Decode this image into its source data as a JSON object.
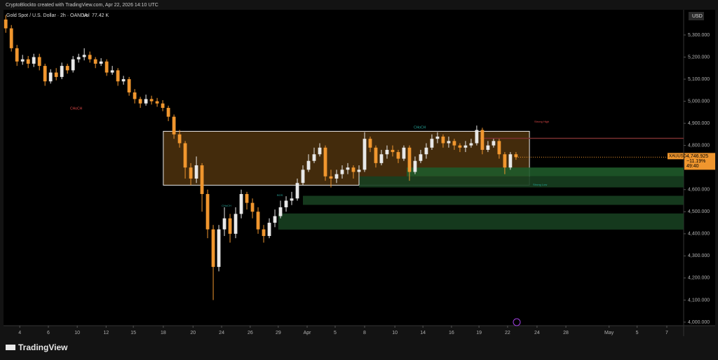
{
  "header": "CryptoBlockto created with TradingView.com, Apr 22, 2026 14:10 UTC",
  "brand": "TradingView",
  "chart_data": {
    "type": "candlestick",
    "title": "Gold Spot / U.S. Dollar · 2h · OANDA",
    "volume_label": "Vol",
    "volume": "77.42 K",
    "currency": "USD",
    "symbol": "XAUUSD",
    "change": "−11.19%",
    "countdown": "49:40",
    "close_label": "4,746.925",
    "up_color": "#e8e8e8",
    "down_color": "#f0962e",
    "open": 5370,
    "close": [
      5330,
      5240,
      5180,
      5190,
      5170,
      5200,
      5160,
      5090,
      5130,
      5110,
      5160,
      5140,
      5190,
      5200,
      5210,
      5190,
      5170,
      5180,
      5130,
      5140,
      5090,
      5100,
      5040,
      5010,
      4990,
      5010,
      5000,
      4990,
      4970,
      4930,
      4850,
      4810,
      4700,
      4650,
      4710,
      4580,
      4420,
      4250,
      4420,
      4470,
      4400,
      4490,
      4580,
      4540,
      4500,
      4420,
      4390,
      4450,
      4480,
      4520,
      4550,
      4560,
      4630,
      4690,
      4730,
      4760,
      4790,
      4660,
      4650,
      4670,
      4690,
      4700,
      4680,
      4690,
      4830,
      4790,
      4720,
      4760,
      4780,
      4770,
      4740,
      4790,
      4680,
      4730,
      4760,
      4790,
      4830,
      4840,
      4810,
      4820,
      4800,
      4790,
      4800,
      4810,
      4870,
      4780,
      4800,
      4820,
      4760,
      4700,
      4760,
      4746.925
    ],
    "high": [
      5390,
      5345,
      5255,
      5210,
      5205,
      5215,
      5215,
      5170,
      5145,
      5150,
      5175,
      5170,
      5205,
      5215,
      5240,
      5225,
      5200,
      5195,
      5190,
      5160,
      5150,
      5115,
      5110,
      5055,
      5020,
      5030,
      5025,
      5015,
      5005,
      4980,
      4940,
      4870,
      4820,
      4720,
      4750,
      4720,
      4600,
      4440,
      4440,
      4520,
      4490,
      4520,
      4600,
      4590,
      4560,
      4520,
      4440,
      4470,
      4510,
      4550,
      4570,
      4590,
      4650,
      4710,
      4760,
      4790,
      4810,
      4800,
      4690,
      4690,
      4710,
      4720,
      4710,
      4710,
      4860,
      4840,
      4800,
      4780,
      4800,
      4800,
      4780,
      4800,
      4800,
      4750,
      4780,
      4810,
      4850,
      4860,
      4850,
      4840,
      4830,
      4810,
      4820,
      4830,
      4890,
      4880,
      4820,
      4830,
      4830,
      4770,
      4770,
      4770
    ],
    "low": [
      5310,
      5225,
      5160,
      5165,
      5150,
      5155,
      5140,
      5070,
      5080,
      5095,
      5100,
      5125,
      5130,
      5175,
      5185,
      5175,
      5150,
      5160,
      5115,
      5120,
      5070,
      5075,
      5025,
      4990,
      4970,
      4980,
      4985,
      4975,
      4955,
      4910,
      4830,
      4790,
      4650,
      4620,
      4630,
      4500,
      4380,
      4100,
      4230,
      4390,
      4360,
      4380,
      4470,
      4510,
      4470,
      4400,
      4360,
      4380,
      4430,
      4470,
      4500,
      4530,
      4550,
      4620,
      4680,
      4720,
      4750,
      4640,
      4610,
      4630,
      4650,
      4670,
      4650,
      4620,
      4680,
      4770,
      4700,
      4710,
      4740,
      4750,
      4720,
      4730,
      4640,
      4670,
      4720,
      4740,
      4780,
      4810,
      4790,
      4790,
      4780,
      4770,
      4770,
      4790,
      4800,
      4760,
      4770,
      4790,
      4740,
      4670,
      4690,
      4735
    ],
    "zones": [
      {
        "start": 28.1,
        "top": 4864,
        "bottom": 4620,
        "color": "#5a3a10"
      },
      {
        "start": 71.5,
        "top": 4700,
        "bottom": 4660,
        "color": "#1f5a2a"
      },
      {
        "start": 63,
        "top": 4660,
        "bottom": 4610,
        "color": "#173f20"
      },
      {
        "start": 53,
        "top": 4572,
        "bottom": 4531,
        "color": "#173f20"
      },
      {
        "start": 48.6,
        "top": 4492,
        "bottom": 4419,
        "color": "#173f20"
      }
    ],
    "resistance": {
      "start": 84.6,
      "value": 4832,
      "color": "#7a3030"
    },
    "annotations": [
      "CHoCH",
      "CHoCH",
      "Strong High",
      "Strong Low",
      "BOS",
      "CHoCH"
    ],
    "xlim": [
      -0.4,
      120.9
    ],
    "xticks": [
      {
        "value": 2.5,
        "label": "4"
      },
      {
        "value": 7.6,
        "label": "6"
      },
      {
        "value": 12.75,
        "label": "10"
      },
      {
        "value": 17.9,
        "label": "12"
      },
      {
        "value": 22.75,
        "label": "15"
      },
      {
        "value": 28.1,
        "label": "18"
      },
      {
        "value": 33.4,
        "label": "20"
      },
      {
        "value": 38.5,
        "label": "24"
      },
      {
        "value": 43.6,
        "label": "26"
      },
      {
        "value": 48.6,
        "label": "29"
      },
      {
        "value": 53.75,
        "label": "Apr"
      },
      {
        "value": 58.75,
        "label": "5"
      },
      {
        "value": 64,
        "label": "8"
      },
      {
        "value": 69.4,
        "label": "10"
      },
      {
        "value": 74.4,
        "label": "14"
      },
      {
        "value": 79.5,
        "label": "16"
      },
      {
        "value": 84.4,
        "label": "19"
      },
      {
        "value": 89.5,
        "label": "22"
      },
      {
        "value": 94.75,
        "label": "24"
      },
      {
        "value": 99.9,
        "label": "28"
      },
      {
        "value": 107.6,
        "label": "May"
      },
      {
        "value": 112.6,
        "label": "5"
      },
      {
        "value": 117.9,
        "label": "7"
      }
    ],
    "ylim": [
      3984,
      5414
    ],
    "yticks": [
      {
        "value": 4000,
        "label": "4,000.000"
      },
      {
        "value": 4100,
        "label": "4,100.000"
      },
      {
        "value": 4200,
        "label": "4,200.000"
      },
      {
        "value": 4300,
        "label": "4,300.000"
      },
      {
        "value": 4400,
        "label": "4,400.000"
      },
      {
        "value": 4500,
        "label": "4,500.000"
      },
      {
        "value": 4600,
        "label": "4,600.000"
      },
      {
        "value": 4800,
        "label": "4,800.000"
      },
      {
        "value": 4900,
        "label": "4,900.000"
      },
      {
        "value": 5000,
        "label": "5,000.000"
      },
      {
        "value": 5100,
        "label": "5,100.000"
      },
      {
        "value": 5200,
        "label": "5,200.000"
      },
      {
        "value": 5300,
        "label": "5,300.000"
      }
    ]
  }
}
